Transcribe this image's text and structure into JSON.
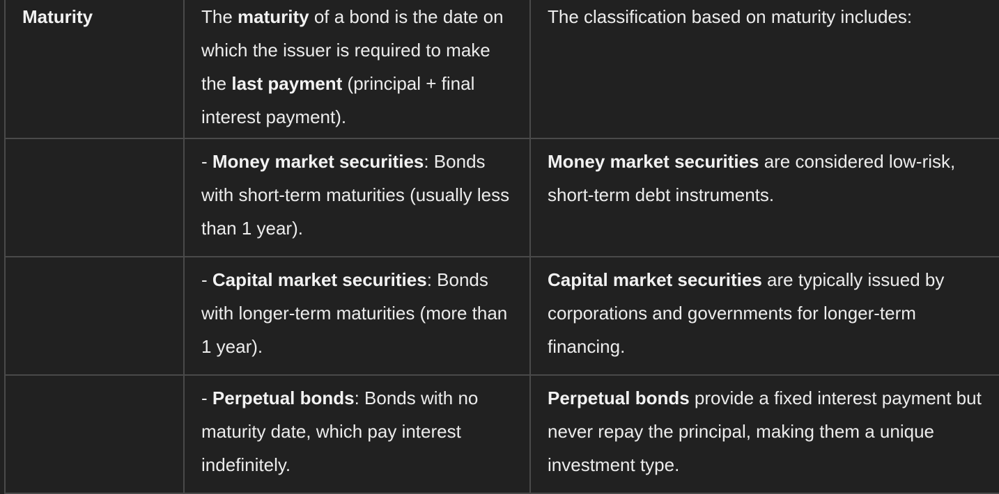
{
  "table": {
    "rows": [
      {
        "col1": "Maturity",
        "col2": {
          "p1": "The ",
          "b1": "maturity",
          "p2": " of a bond is the date on which the issuer is required to make the ",
          "b2": "last payment",
          "p3": " (principal + final interest payment)."
        },
        "col3": {
          "p1": "The classification based on maturity includes:"
        }
      },
      {
        "col1": "",
        "col2": {
          "p1": "- ",
          "b1": "Money market securities",
          "p2": ": Bonds with short-term maturities (usually less than 1 year)."
        },
        "col3": {
          "b1": "Money market securities",
          "p1": " are considered low-risk, short-term debt instruments."
        }
      },
      {
        "col1": "",
        "col2": {
          "p1": "- ",
          "b1": "Capital market securities",
          "p2": ": Bonds with longer-term maturities (more than 1 year)."
        },
        "col3": {
          "b1": "Capital market securities",
          "p1": " are typically issued by corporations and governments for longer-term financing."
        }
      },
      {
        "col1": "",
        "col2": {
          "p1": "- ",
          "b1": "Perpetual bonds",
          "p2": ": Bonds with no maturity date, which pay interest indefinitely."
        },
        "col3": {
          "b1": "Perpetual bonds",
          "p1": " provide a fixed interest payment but never repay the principal, making them a unique investment type."
        }
      }
    ]
  }
}
